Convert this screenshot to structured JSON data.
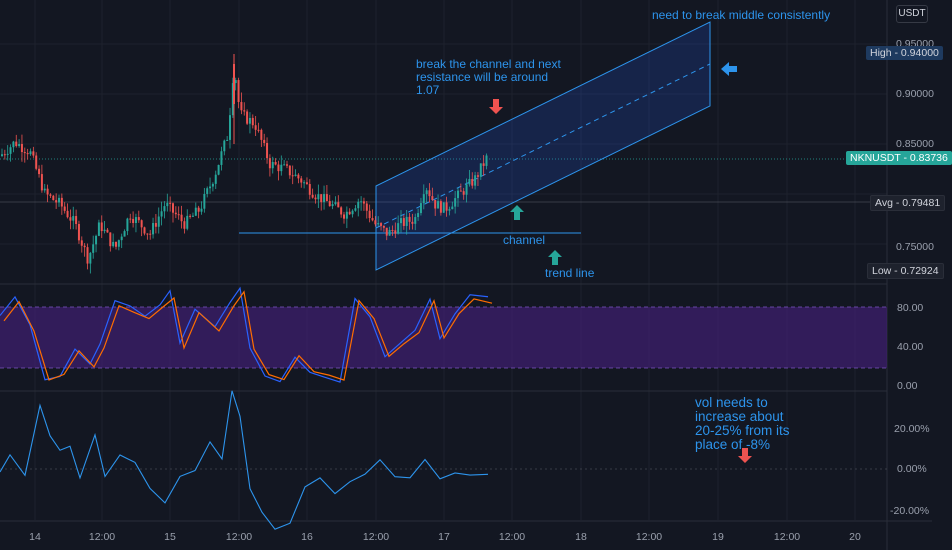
{
  "currency_button": "USDT",
  "price_axis": {
    "ticks": [
      "0.95000",
      "0.90000",
      "0.85000",
      "0.75000"
    ]
  },
  "price_badges": {
    "high": {
      "label": "High - 0.94000",
      "value": 0.94,
      "color": "#1e3a5f"
    },
    "symbol": {
      "label": "NKNUSDT - 0.83736",
      "value": 0.83736,
      "color": "#26a69a"
    },
    "avg": {
      "label": "Avg - 0.79481",
      "value": 0.79481,
      "color": "#1e222d"
    },
    "low": {
      "label": "Low - 0.72924",
      "value": 0.72924,
      "color": "#1e222d"
    }
  },
  "stoch_axis": {
    "ticks": [
      "80.00",
      "40.00",
      "0.00"
    ]
  },
  "vol_axis": {
    "ticks": [
      "20.00%",
      "0.00%",
      "-20.00%"
    ]
  },
  "time_axis": {
    "ticks": [
      "14",
      "12:00",
      "15",
      "12:00",
      "16",
      "12:00",
      "17",
      "12:00",
      "18",
      "12:00",
      "19",
      "12:00",
      "20"
    ]
  },
  "annotations": {
    "top": "need to break middle consistently",
    "resistance": "break the channel and next resistance will be around 1.07",
    "channel": "channel",
    "trend": "trend line",
    "vol": "vol needs to increase about 20-25% from its place of -8%"
  },
  "colors": {
    "up": "#26a69a",
    "down": "#ef5350",
    "accent": "#2d94ec",
    "stoch_zone": "#3d1f6e",
    "k_line": "#2962ff",
    "d_line": "#ff6d00"
  },
  "icons": [
    "arrow-down-icon",
    "arrow-up-icon",
    "arrow-left-icon"
  ]
}
